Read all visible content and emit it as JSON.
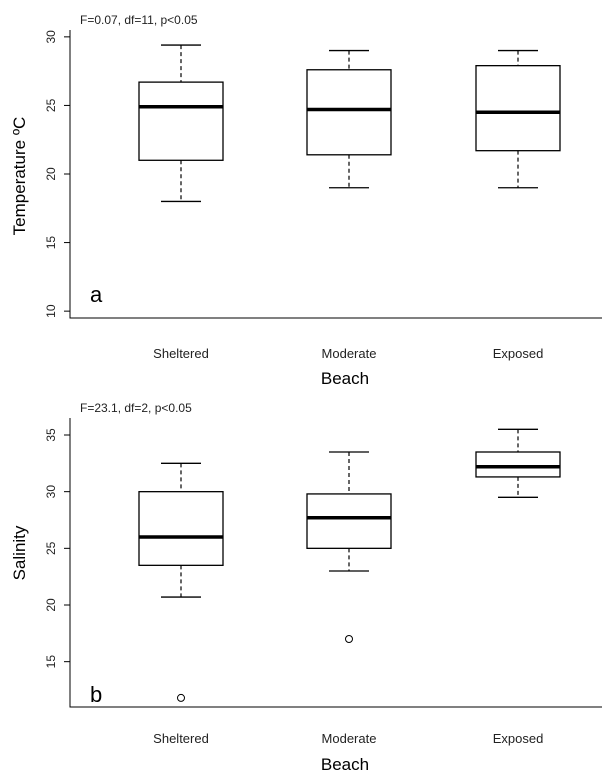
{
  "chart_data": [
    {
      "type": "box",
      "panel_label": "a",
      "annotation": "F=0.07, df=11, p<0.05",
      "xlabel": "Beach",
      "ylabel": "Temperature ºC",
      "categories": [
        "Sheltered",
        "Moderate",
        "Exposed"
      ],
      "ylim": [
        9.5,
        30.5
      ],
      "yticks": [
        10,
        15,
        20,
        25,
        30
      ],
      "boxes": [
        {
          "min": 18,
          "q1": 21,
          "median": 24.9,
          "q3": 26.7,
          "max": 29.4,
          "outliers": []
        },
        {
          "min": 19,
          "q1": 21.4,
          "median": 24.7,
          "q3": 27.6,
          "max": 29,
          "outliers": []
        },
        {
          "min": 19,
          "q1": 21.7,
          "median": 24.5,
          "q3": 27.9,
          "max": 29,
          "outliers": []
        }
      ]
    },
    {
      "type": "box",
      "panel_label": "b",
      "annotation": "F=23.1, df=2, p<0.05",
      "xlabel": "Beach",
      "ylabel": "Salinity",
      "categories": [
        "Sheltered",
        "Moderate",
        "Exposed"
      ],
      "ylim": [
        11,
        36.5
      ],
      "yticks": [
        15,
        20,
        25,
        30,
        35
      ],
      "boxes": [
        {
          "min": 20.7,
          "q1": 23.5,
          "median": 26,
          "q3": 30,
          "max": 32.5,
          "outliers": [
            11.8
          ]
        },
        {
          "min": 23,
          "q1": 25,
          "median": 27.7,
          "q3": 29.8,
          "max": 33.5,
          "outliers": [
            17
          ]
        },
        {
          "min": 29.5,
          "q1": 31.3,
          "median": 32.2,
          "q3": 33.5,
          "max": 35.5,
          "outliers": []
        }
      ]
    }
  ]
}
